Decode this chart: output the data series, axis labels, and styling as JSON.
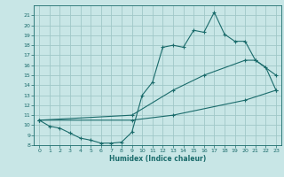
{
  "bg_color": "#c8e6e6",
  "line_color": "#1a6b6b",
  "grid_color": "#a0c8c8",
  "xlabel": "Humidex (Indice chaleur)",
  "ylim": [
    8,
    22
  ],
  "xlim": [
    -0.5,
    23.5
  ],
  "yticks": [
    8,
    9,
    10,
    11,
    12,
    13,
    14,
    15,
    16,
    17,
    18,
    19,
    20,
    21
  ],
  "xticks": [
    0,
    1,
    2,
    3,
    4,
    5,
    6,
    7,
    8,
    9,
    10,
    11,
    12,
    13,
    14,
    15,
    16,
    17,
    18,
    19,
    20,
    21,
    22,
    23
  ],
  "line1_x": [
    0,
    1,
    2,
    3,
    4,
    5,
    6,
    7,
    8,
    9,
    10,
    11,
    12,
    13,
    14,
    15,
    16,
    17,
    18,
    19,
    20,
    21,
    22,
    23
  ],
  "line1_y": [
    10.5,
    9.9,
    9.7,
    9.2,
    8.7,
    8.5,
    8.2,
    8.2,
    8.3,
    9.3,
    13.0,
    14.3,
    17.8,
    18.0,
    17.8,
    19.5,
    19.3,
    21.3,
    19.1,
    18.4,
    18.4,
    16.5,
    15.8,
    13.5
  ],
  "line2_x": [
    0,
    9,
    13,
    16,
    20,
    21,
    23
  ],
  "line2_y": [
    10.5,
    11.0,
    13.5,
    15.0,
    16.5,
    16.5,
    15.0
  ],
  "line3_x": [
    0,
    9,
    13,
    20,
    23
  ],
  "line3_y": [
    10.5,
    10.5,
    11.0,
    12.5,
    13.5
  ]
}
